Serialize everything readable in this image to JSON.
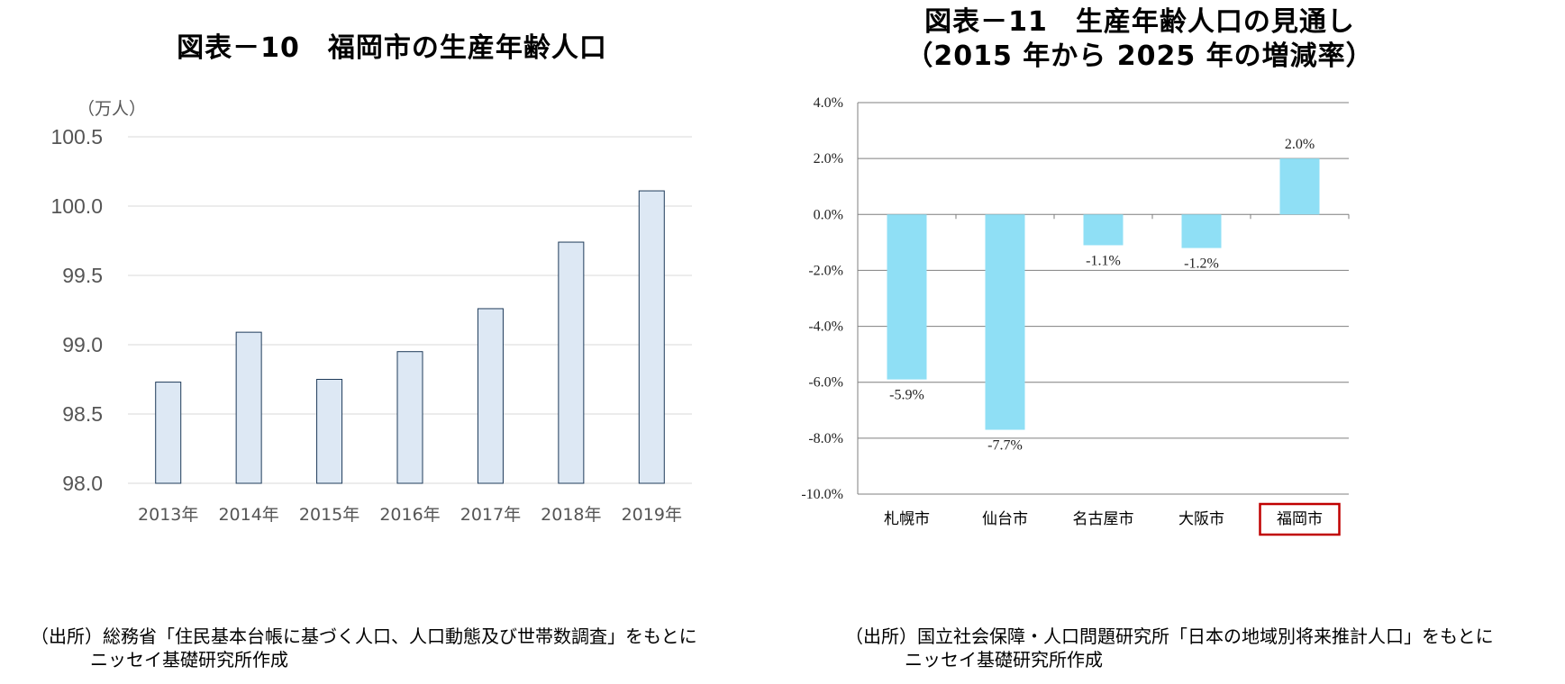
{
  "chart_data": [
    {
      "type": "bar",
      "title": "図表－10　福岡市の生産年齢人口",
      "unit": "（万人）",
      "categories": [
        "2013年",
        "2014年",
        "2015年",
        "2016年",
        "2017年",
        "2018年",
        "2019年"
      ],
      "values": [
        98.73,
        99.09,
        98.75,
        98.95,
        99.26,
        99.74,
        100.11
      ],
      "yticks": [
        "98.0",
        "98.5",
        "99.0",
        "99.5",
        "100.0",
        "100.5"
      ],
      "ylim": [
        98.0,
        100.5
      ],
      "grid": true,
      "colors": {
        "bar_fill": "#dde8f4",
        "bar_stroke": "#1f3b5a",
        "grid": "#d9d9d9"
      },
      "source_line1": "（出所）総務省「住民基本台帳に基づく人口、人口動態及び世帯数調査」をもとに",
      "source_line2": "ニッセイ基礎研究所作成"
    },
    {
      "type": "bar",
      "title_line1": "図表－11　生産年齢人口の見通し",
      "title_line2": "（2015 年から 2025 年の増減率）",
      "categories": [
        "札幌市",
        "仙台市",
        "名古屋市",
        "大阪市",
        "福岡市"
      ],
      "values": [
        -5.9,
        -7.7,
        -1.1,
        -1.2,
        2.0
      ],
      "data_labels": [
        "-5.9%",
        "-7.7%",
        "-1.1%",
        "-1.2%",
        "2.0%"
      ],
      "yticks": [
        "4.0%",
        "2.0%",
        "0.0%",
        "-2.0%",
        "-4.0%",
        "-6.0%",
        "-8.0%",
        "-10.0%"
      ],
      "ylim": [
        -10.0,
        4.0
      ],
      "grid": true,
      "highlighted_category": "福岡市",
      "colors": {
        "bar_fill": "#8fdff5",
        "grid": "#7f7f7f",
        "highlight_box": "#c00000"
      },
      "source_line1": "（出所）国立社会保障・人口問題研究所「日本の地域別将来推計人口」をもとに",
      "source_line2": "ニッセイ基礎研究所作成"
    }
  ]
}
